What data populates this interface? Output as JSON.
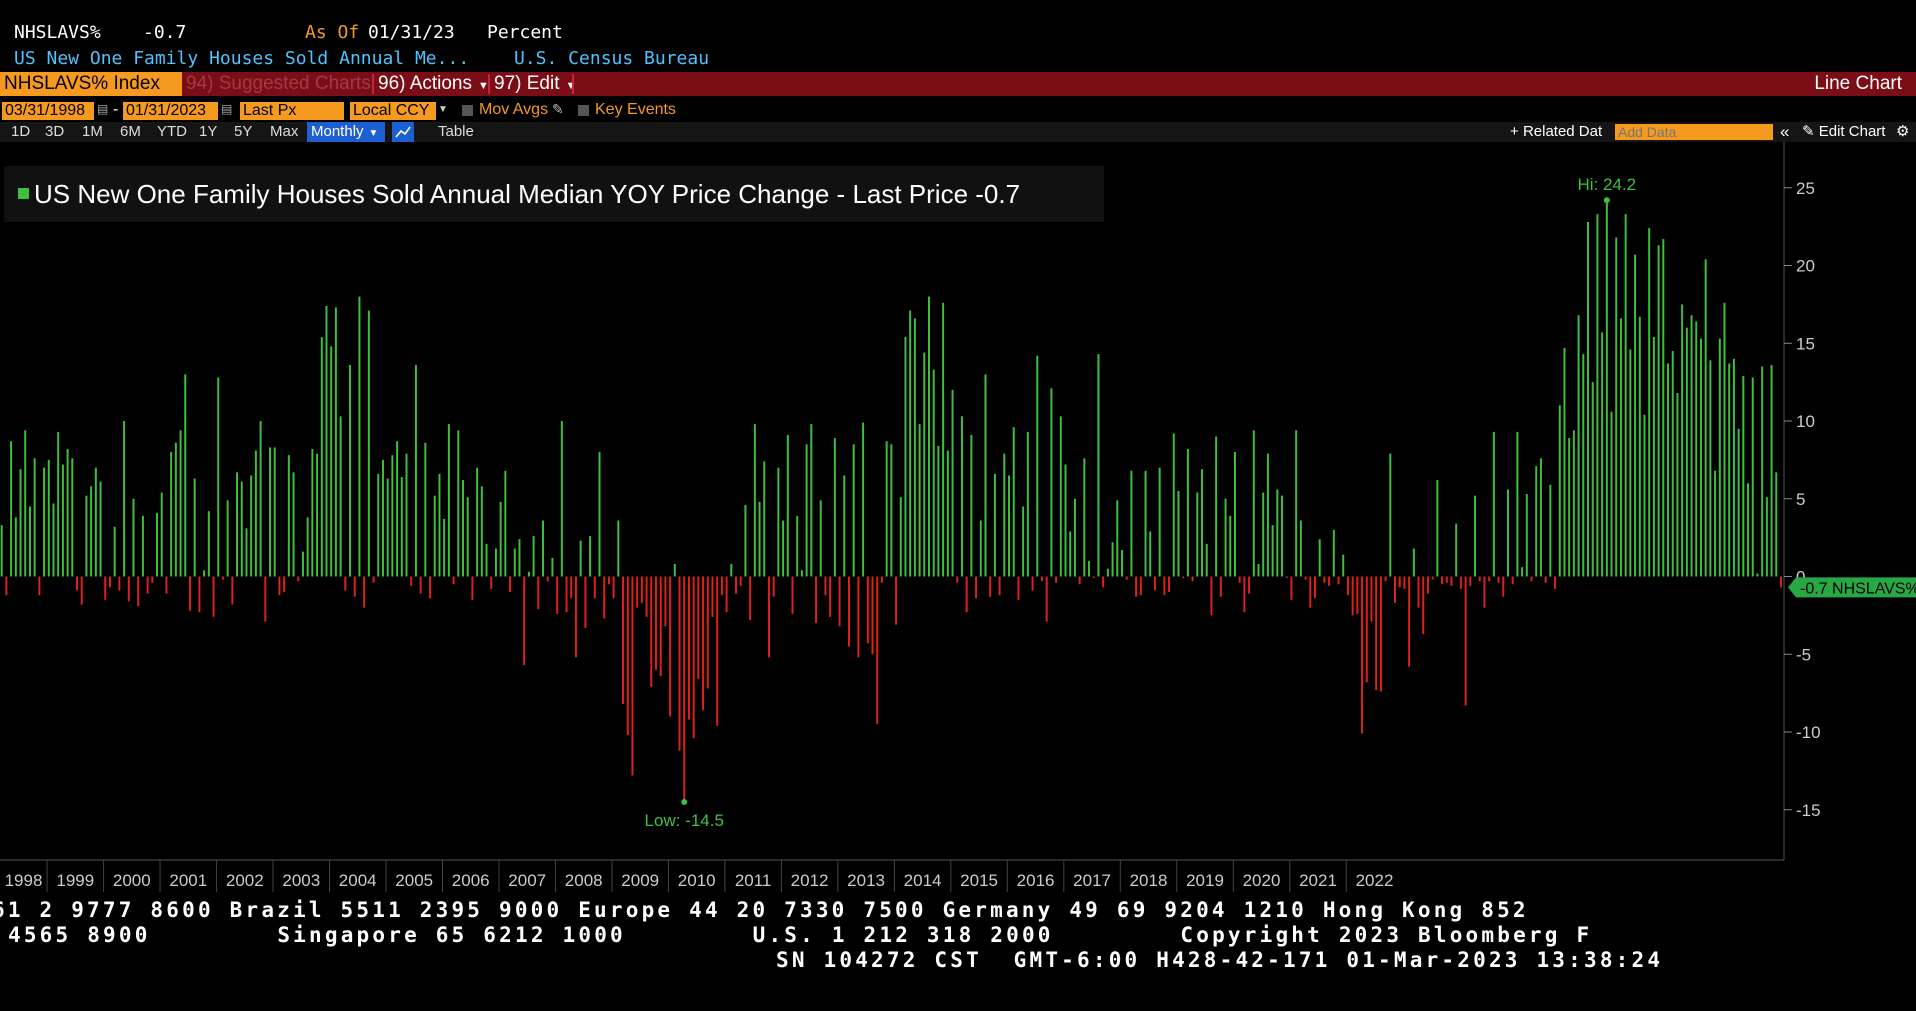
{
  "header": {
    "ticker": "NHSLAVS%",
    "last_value": "-0.7",
    "as_of_label": "As Of",
    "as_of_date": "01/31/23",
    "unit": "Percent",
    "description": "US New One Family Houses Sold Annual Me...",
    "source": "U.S. Census Bureau"
  },
  "menubar": {
    "index_label": "NHSLAVS% Index",
    "suggested": "94) Suggested Charts",
    "actions": "96) Actions",
    "edit": "97) Edit",
    "chart_type": "Line Chart"
  },
  "controls": {
    "start_date": "03/31/1998",
    "dash": "-",
    "end_date": "01/31/2023",
    "field": "Last Px",
    "currency": "Local CCY",
    "mov_avgs": "Mov Avgs",
    "key_events": "Key Events"
  },
  "toolbar": {
    "ranges": [
      "1D",
      "3D",
      "1M",
      "6M",
      "YTD",
      "1Y",
      "5Y",
      "Max"
    ],
    "frequency": "Monthly",
    "table": "Table",
    "related_data": "Related Dat",
    "add_data_placeholder": "Add Data",
    "edit_chart": "Edit Chart"
  },
  "colors": {
    "positive": "#3fbf3f",
    "negative": "#e0201e",
    "label": "#40c040",
    "orange": "#f59a1f",
    "red_bar": "#7b0d17"
  },
  "chart_data": {
    "type": "bar",
    "legend": "US New One Family Houses Sold Annual Median YOY Price Change - Last Price -0.7",
    "x_tick_labels": [
      "1998",
      "1999",
      "2000",
      "2001",
      "2002",
      "2003",
      "2004",
      "2005",
      "2006",
      "2007",
      "2008",
      "2009",
      "2010",
      "2011",
      "2012",
      "2013",
      "2014",
      "2015",
      "2016",
      "2017",
      "2018",
      "2019",
      "2020",
      "2021",
      "2022"
    ],
    "y_ticks": [
      25,
      20,
      15,
      10,
      5,
      0,
      -5,
      -10,
      -15
    ],
    "ylim": [
      -18.2,
      27.3
    ],
    "x_start": "1998-03",
    "x_end": "2023-01",
    "high_label": "Hi: 24.2",
    "low_label": "Low: -14.5",
    "last_label": "-0.7 NHSLAVS%",
    "values": [
      3.3,
      -1.2,
      8.7,
      3.8,
      6.9,
      9.4,
      4.5,
      7.6,
      -1.2,
      7.0,
      7.5,
      4.7,
      9.3,
      7.2,
      8.2,
      7.6,
      -0.9,
      -1.8,
      5.2,
      5.8,
      7.0,
      6.1,
      -1.5,
      -0.7,
      3.2,
      -0.9,
      10.0,
      -1.6,
      5.0,
      -1.9,
      3.9,
      -1.1,
      -0.4,
      4.1,
      5.4,
      -1.1,
      8.0,
      8.6,
      9.4,
      13.0,
      -2.2,
      6.3,
      -2.3,
      0.4,
      4.2,
      -2.6,
      12.8,
      -0.2,
      4.9,
      -1.8,
      6.7,
      6.1,
      3.1,
      6.5,
      8.1,
      10.0,
      -2.9,
      8.3,
      8.3,
      -1.2,
      -1.0,
      7.8,
      6.7,
      -0.3,
      1.6,
      3.8,
      8.2,
      7.9,
      15.4,
      17.4,
      14.8,
      17.3,
      10.3,
      -0.9,
      13.6,
      -1.3,
      18.0,
      -2.0,
      17.1,
      -0.4,
      6.6,
      7.5,
      6.3,
      7.8,
      8.7,
      6.4,
      7.9,
      -0.6,
      13.6,
      -1.1,
      8.6,
      -1.4,
      5.2,
      6.6,
      3.7,
      9.8,
      -0.5,
      9.4,
      6.2,
      5.1,
      -1.5,
      7.0,
      5.8,
      2.1,
      -0.8,
      1.8,
      4.8,
      6.8,
      -1.0,
      1.8,
      2.4,
      -5.7,
      0.3,
      2.6,
      -2.1,
      3.6,
      -0.3,
      1.2,
      -2.4,
      10.0,
      -2.3,
      -1.4,
      -5.2,
      2.3,
      -3.3,
      2.6,
      -1.4,
      8.0,
      -2.7,
      -0.5,
      -1.4,
      3.6,
      -8.2,
      -10.2,
      -12.8,
      -2.0,
      -1.7,
      -2.6,
      -7.1,
      -6.0,
      -6.4,
      -3.2,
      -9.0,
      0.8,
      -11.2,
      -14.5,
      -9.2,
      -10.4,
      -6.6,
      -8.6,
      -7.2,
      -2.6,
      -9.6,
      -1.2,
      -2.3,
      0.8,
      -1.1,
      -0.6,
      4.6,
      -2.8,
      9.8,
      4.8,
      7.4,
      -5.2,
      -1.3,
      7.0,
      3.6,
      9.1,
      -2.4,
      3.9,
      0.4,
      8.5,
      9.8,
      -3.0,
      4.9,
      -1.2,
      -2.6,
      8.9,
      -3.2,
      6.5,
      -4.5,
      8.5,
      -5.2,
      9.9,
      -4.3,
      -5.0,
      -9.5,
      -0.4,
      8.7,
      8.5,
      -3.1,
      5.1,
      15.4,
      17.1,
      16.6,
      9.8,
      14.4,
      18.0,
      13.3,
      8.4,
      17.6,
      8.1,
      12.0,
      -0.4,
      10.3,
      -2.3,
      9.1,
      -1.4,
      3.6,
      13.0,
      -1.3,
      6.6,
      -1.2,
      7.9,
      6.5,
      9.6,
      -1.5,
      4.5,
      9.3,
      -0.9,
      14.2,
      -0.3,
      -2.9,
      12.1,
      -0.4,
      10.3,
      7.2,
      2.9,
      5.0,
      -0.5,
      7.6,
      1.0,
      -0.1,
      14.3,
      -0.7,
      0.5,
      2.2,
      4.9,
      1.7,
      -0.2,
      6.8,
      -1.3,
      -1.2,
      6.8,
      2.9,
      -0.9,
      7.0,
      -1.2,
      -1.0,
      9.2,
      5.5,
      -0.1,
      8.2,
      -0.3,
      5.4,
      6.9,
      2.1,
      -2.5,
      9.0,
      -1.3,
      5.0,
      3.9,
      8.0,
      -0.4,
      -2.3,
      -1.1,
      9.4,
      0.8,
      5.4,
      7.9,
      3.3,
      5.6,
      5.2,
      -0.1,
      -1.5,
      9.4,
      3.6,
      -0.2,
      -2.0,
      -1.4,
      2.4,
      -0.4,
      -0.6,
      3.0,
      -0.5,
      1.4,
      -1.2,
      -2.5,
      -2.4,
      -10.1,
      -6.8,
      -2.9,
      -7.3,
      -7.4,
      -0.3,
      7.9,
      -1.7,
      -0.7,
      -0.8,
      -5.8,
      1.8,
      -2.0,
      -3.7,
      -1.1,
      -0.2,
      6.2,
      -0.5,
      -0.4,
      -0.6,
      3.4,
      -0.8,
      -8.3,
      -0.6,
      5.2,
      -0.3,
      -2.0,
      -0.3,
      9.3,
      -0.4,
      -1.3,
      5.6,
      -0.5,
      9.3,
      0.6,
      5.3,
      -0.3,
      7.1,
      7.6,
      -0.4,
      5.9,
      -0.8,
      11.0,
      14.7,
      8.9,
      9.4,
      16.8,
      14.3,
      22.8,
      12.5,
      23.3,
      15.7,
      24.2,
      10.6,
      21.8,
      16.6,
      23.3,
      14.6,
      20.7,
      16.7,
      10.4,
      22.4,
      15.4,
      21.3,
      21.7,
      13.7,
      14.5,
      11.8,
      17.5,
      16.0,
      16.8,
      16.4,
      15.3,
      20.4,
      13.9,
      6.8,
      15.3,
      17.6,
      13.7,
      14.0,
      9.5,
      12.9,
      6.0,
      12.8,
      0.2,
      13.5,
      5.1,
      13.6,
      6.7,
      -0.7
    ]
  }
}
